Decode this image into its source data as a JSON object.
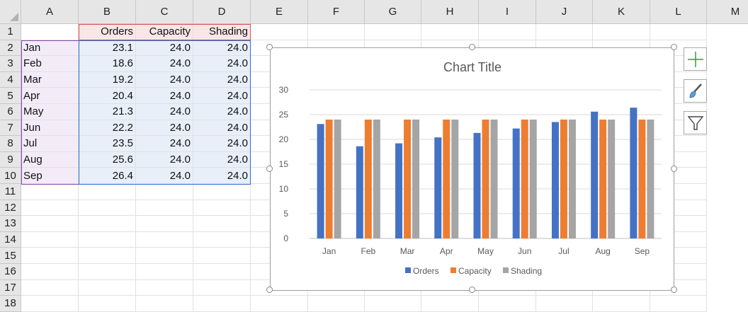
{
  "columns": [
    "A",
    "B",
    "C",
    "D",
    "E",
    "F",
    "G",
    "H",
    "I",
    "J",
    "K",
    "L",
    "M"
  ],
  "rows": [
    "1",
    "2",
    "3",
    "4",
    "5",
    "6",
    "7",
    "8",
    "9",
    "10",
    "11",
    "12",
    "13",
    "14",
    "15",
    "16",
    "17",
    "18"
  ],
  "table": {
    "headers": [
      "Orders",
      "Capacity",
      "Shading"
    ],
    "data": [
      {
        "month": "Jan",
        "orders": "23.1",
        "capacity": "24.0",
        "shading": "24.0"
      },
      {
        "month": "Feb",
        "orders": "18.6",
        "capacity": "24.0",
        "shading": "24.0"
      },
      {
        "month": "Mar",
        "orders": "19.2",
        "capacity": "24.0",
        "shading": "24.0"
      },
      {
        "month": "Apr",
        "orders": "20.4",
        "capacity": "24.0",
        "shading": "24.0"
      },
      {
        "month": "May",
        "orders": "21.3",
        "capacity": "24.0",
        "shading": "24.0"
      },
      {
        "month": "Jun",
        "orders": "22.2",
        "capacity": "24.0",
        "shading": "24.0"
      },
      {
        "month": "Jul",
        "orders": "23.5",
        "capacity": "24.0",
        "shading": "24.0"
      },
      {
        "month": "Aug",
        "orders": "25.6",
        "capacity": "24.0",
        "shading": "24.0"
      },
      {
        "month": "Sep",
        "orders": "26.4",
        "capacity": "24.0",
        "shading": "24.0"
      }
    ]
  },
  "side_buttons": {
    "add": "plus-icon",
    "style": "brush-icon",
    "filter": "filter-icon"
  },
  "chart_data": {
    "type": "bar",
    "title": "Chart Title",
    "categories": [
      "Jan",
      "Feb",
      "Mar",
      "Apr",
      "May",
      "Jun",
      "Jul",
      "Aug",
      "Sep"
    ],
    "series": [
      {
        "name": "Orders",
        "values": [
          23.1,
          18.6,
          19.2,
          20.4,
          21.3,
          22.2,
          23.5,
          25.6,
          26.4
        ],
        "color": "#4472c4"
      },
      {
        "name": "Capacity",
        "values": [
          24,
          24,
          24,
          24,
          24,
          24,
          24,
          24,
          24
        ],
        "color": "#ed7d31"
      },
      {
        "name": "Shading",
        "values": [
          24,
          24,
          24,
          24,
          24,
          24,
          24,
          24,
          24
        ],
        "color": "#a5a5a5"
      }
    ],
    "ylim": [
      0,
      30
    ],
    "yticks": [
      "0",
      "5",
      "10",
      "15",
      "20",
      "25",
      "30"
    ],
    "grid": true,
    "legend": "bottom"
  }
}
